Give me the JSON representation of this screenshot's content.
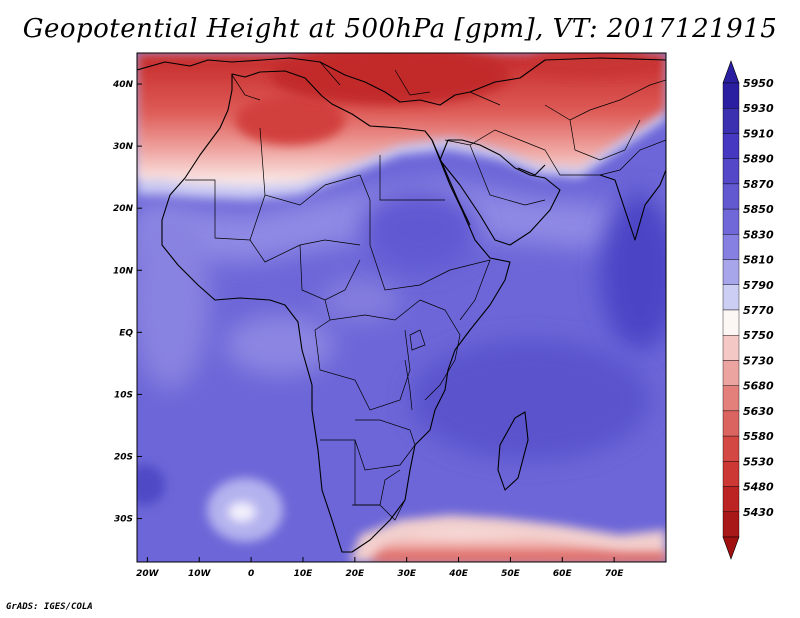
{
  "title": "Geopotential Height at 500hPa [gpm], VT: 2017121915",
  "credit": "GrADS: IGES/COLA",
  "map": {
    "variable": "Geopotential Height at 500hPa",
    "units": "gpm",
    "lon_range": [
      -22,
      80
    ],
    "lat_range": [
      -37,
      45
    ],
    "x_ticks": [
      {
        "value": -20,
        "label": "20W"
      },
      {
        "value": -10,
        "label": "10W"
      },
      {
        "value": 0,
        "label": "0"
      },
      {
        "value": 10,
        "label": "10E"
      },
      {
        "value": 20,
        "label": "20E"
      },
      {
        "value": 30,
        "label": "30E"
      },
      {
        "value": 40,
        "label": "40E"
      },
      {
        "value": 50,
        "label": "50E"
      },
      {
        "value": 60,
        "label": "60E"
      },
      {
        "value": 70,
        "label": "70E"
      }
    ],
    "y_ticks": [
      {
        "value": 40,
        "label": "40N"
      },
      {
        "value": 30,
        "label": "30N"
      },
      {
        "value": 20,
        "label": "20N"
      },
      {
        "value": 10,
        "label": "10N"
      },
      {
        "value": 0,
        "label": "EQ"
      },
      {
        "value": -10,
        "label": "10S"
      },
      {
        "value": -20,
        "label": "20S"
      },
      {
        "value": -30,
        "label": "30S"
      }
    ]
  },
  "colorbar": {
    "top_color": "#2a1fa0",
    "bottom_color": "#a01010",
    "levels": [
      {
        "label": "5950",
        "color": "#2a1fa0"
      },
      {
        "label": "5930",
        "color": "#3a30b0"
      },
      {
        "label": "5910",
        "color": "#4638c0"
      },
      {
        "label": "5890",
        "color": "#5448c8"
      },
      {
        "label": "5870",
        "color": "#6258d0"
      },
      {
        "label": "5850",
        "color": "#7068d8"
      },
      {
        "label": "5830",
        "color": "#8680e2"
      },
      {
        "label": "5810",
        "color": "#a8a6ea"
      },
      {
        "label": "5790",
        "color": "#cccef4"
      },
      {
        "label": "5770",
        "color": "#fcf6f4"
      },
      {
        "label": "5750",
        "color": "#f4c8c4"
      },
      {
        "label": "5730",
        "color": "#eca4a0"
      },
      {
        "label": "5680",
        "color": "#e4807c"
      },
      {
        "label": "5630",
        "color": "#dc6460"
      },
      {
        "label": "5580",
        "color": "#d44844"
      },
      {
        "label": "5530",
        "color": "#cc3834"
      },
      {
        "label": "5480",
        "color": "#bc2424"
      },
      {
        "label": "5430",
        "color": "#a81818"
      }
    ]
  }
}
